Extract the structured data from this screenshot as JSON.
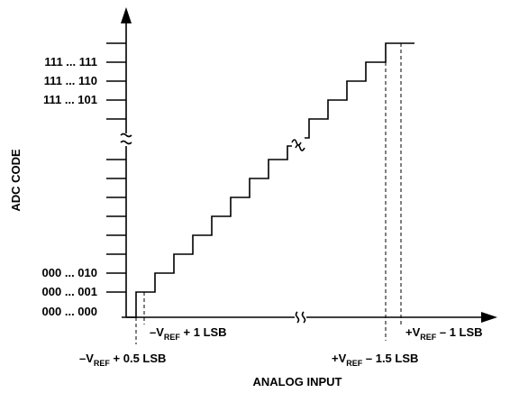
{
  "y_axis": {
    "title": "ADC CODE",
    "labels": [
      "111 ... 111",
      "111 ... 110",
      "111 ... 101",
      "000 ... 010",
      "000 ... 001",
      "000 ... 000"
    ]
  },
  "x_axis": {
    "title": "ANALOG INPUT",
    "labels": [
      {
        "lead": "–V",
        "sub": "REF",
        "rest": " + 1 LSB"
      },
      {
        "lead": "–V",
        "sub": "REF",
        "rest": " + 0.5 LSB"
      },
      {
        "lead": "+V",
        "sub": "REF",
        "rest": " – 1 LSB"
      },
      {
        "lead": "+V",
        "sub": "REF",
        "rest": " – 1.5 LSB"
      }
    ]
  }
}
